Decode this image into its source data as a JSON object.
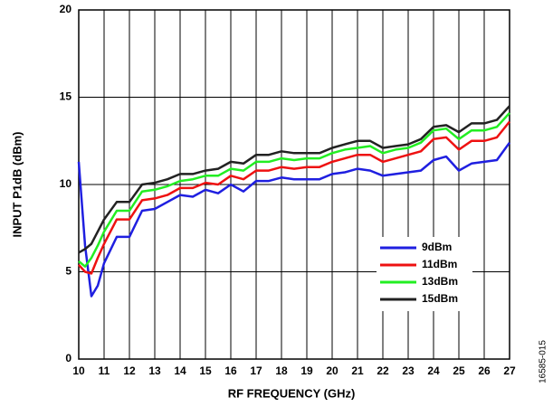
{
  "chart_data": {
    "type": "line",
    "x_label": "RF FREQUENCY (GHz)",
    "y_label": "INPUT P1dB (dBm)",
    "figure_id": "16585-015",
    "x": [
      10,
      10.25,
      10.5,
      10.75,
      11,
      11.5,
      12,
      12.5,
      13,
      13.5,
      14,
      14.5,
      15,
      15.5,
      16,
      16.5,
      17,
      17.5,
      18,
      18.5,
      19,
      19.5,
      20,
      20.5,
      21,
      21.5,
      22,
      22.5,
      23,
      23.5,
      24,
      24.5,
      25,
      25.5,
      26,
      26.5,
      27
    ],
    "series": [
      {
        "name": "9dBm",
        "color": "#1f1fe0",
        "values": [
          11.3,
          6.5,
          3.6,
          4.2,
          5.5,
          7.0,
          7.0,
          8.5,
          8.6,
          9.0,
          9.4,
          9.3,
          9.7,
          9.5,
          10.0,
          9.6,
          10.2,
          10.2,
          10.4,
          10.3,
          10.3,
          10.3,
          10.6,
          10.7,
          10.9,
          10.8,
          10.5,
          10.6,
          10.7,
          10.8,
          11.4,
          11.6,
          10.8,
          11.2,
          11.3,
          11.4,
          12.4
        ]
      },
      {
        "name": "11dBm",
        "color": "#ee1111",
        "values": [
          5.4,
          5.0,
          4.9,
          5.8,
          6.6,
          8.0,
          8.0,
          9.1,
          9.2,
          9.4,
          9.8,
          9.8,
          10.1,
          10.0,
          10.5,
          10.3,
          10.8,
          10.8,
          11.0,
          10.9,
          11.0,
          11.0,
          11.3,
          11.5,
          11.7,
          11.7,
          11.3,
          11.5,
          11.7,
          11.9,
          12.6,
          12.7,
          12.0,
          12.5,
          12.5,
          12.7,
          13.6
        ]
      },
      {
        "name": "13dBm",
        "color": "#22ee22",
        "values": [
          5.6,
          5.3,
          5.8,
          6.5,
          7.3,
          8.5,
          8.5,
          9.6,
          9.7,
          9.9,
          10.2,
          10.3,
          10.5,
          10.5,
          10.9,
          10.8,
          11.3,
          11.3,
          11.5,
          11.4,
          11.5,
          11.5,
          11.8,
          12.0,
          12.1,
          12.2,
          11.8,
          12.0,
          12.1,
          12.4,
          13.1,
          13.2,
          12.6,
          13.1,
          13.1,
          13.3,
          14.1
        ]
      },
      {
        "name": "15dBm",
        "color": "#222222",
        "values": [
          6.1,
          6.3,
          6.6,
          7.3,
          8.0,
          9.0,
          9.0,
          10.0,
          10.1,
          10.3,
          10.6,
          10.6,
          10.8,
          10.9,
          11.3,
          11.2,
          11.7,
          11.7,
          11.9,
          11.8,
          11.8,
          11.8,
          12.1,
          12.3,
          12.5,
          12.5,
          12.1,
          12.2,
          12.3,
          12.6,
          13.3,
          13.4,
          13.0,
          13.5,
          13.5,
          13.7,
          14.5
        ]
      }
    ],
    "xlim": [
      10,
      27
    ],
    "xticks": [
      10,
      11,
      12,
      13,
      14,
      15,
      16,
      17,
      18,
      19,
      20,
      21,
      22,
      23,
      24,
      25,
      26,
      27
    ],
    "ylim": [
      0,
      20
    ],
    "yticks": [
      0,
      5,
      10,
      15,
      20
    ],
    "grid": true,
    "legend": "lower right"
  }
}
